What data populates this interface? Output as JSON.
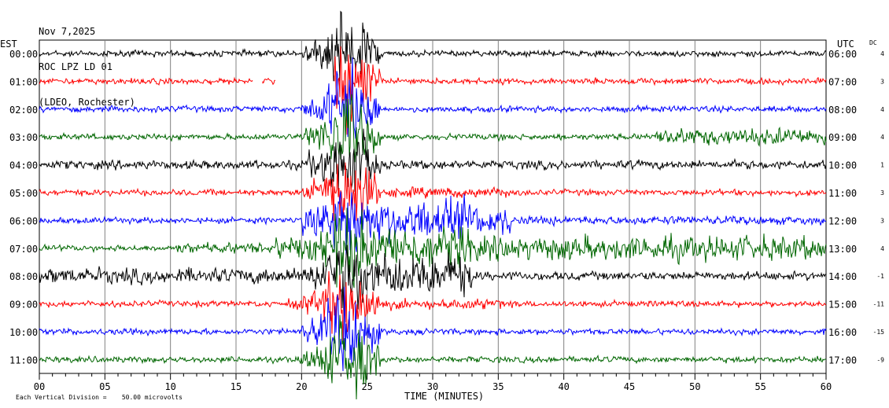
{
  "header": {
    "date": "Nov 7,2025",
    "station": "ROC LPZ LD 01",
    "network": "(LDEO, Rochester)"
  },
  "left_axis_title": "EST",
  "right_axis_title": "UTC",
  "dc_title": "DC",
  "x_axis_title": "TIME (MINUTES)",
  "footer_note": "Each Vertical Division =    50.00 microvolts",
  "chart_data": {
    "type": "line",
    "title": "",
    "xlabel": "TIME (MINUTES)",
    "xlim": [
      0,
      60
    ],
    "x_ticks": [
      "00",
      "05",
      "10",
      "15",
      "20",
      "25",
      "30",
      "35",
      "40",
      "45",
      "50",
      "55",
      "60"
    ],
    "grid": true,
    "colors": [
      "#000000",
      "#ff0000",
      "#0000ff",
      "#006600"
    ],
    "rows": [
      {
        "est": "00:00",
        "utc": "06:00",
        "dc": "4",
        "color": "#000000"
      },
      {
        "est": "01:00",
        "utc": "07:00",
        "dc": "3",
        "color": "#ff0000"
      },
      {
        "est": "02:00",
        "utc": "08:00",
        "dc": "4",
        "color": "#0000ff"
      },
      {
        "est": "03:00",
        "utc": "09:00",
        "dc": "4",
        "color": "#006600"
      },
      {
        "est": "04:00",
        "utc": "10:00",
        "dc": "1",
        "color": "#000000"
      },
      {
        "est": "05:00",
        "utc": "11:00",
        "dc": "3",
        "color": "#ff0000"
      },
      {
        "est": "06:00",
        "utc": "12:00",
        "dc": "3",
        "color": "#0000ff"
      },
      {
        "est": "07:00",
        "utc": "13:00",
        "dc": "4",
        "color": "#006600"
      },
      {
        "est": "08:00",
        "utc": "14:00",
        "dc": "-1",
        "color": "#000000"
      },
      {
        "est": "09:00",
        "utc": "15:00",
        "dc": "-11",
        "color": "#ff0000"
      },
      {
        "est": "10:00",
        "utc": "16:00",
        "dc": "-15",
        "color": "#0000ff"
      },
      {
        "est": "11:00",
        "utc": "17:00",
        "dc": "-9",
        "color": "#006600"
      }
    ]
  }
}
